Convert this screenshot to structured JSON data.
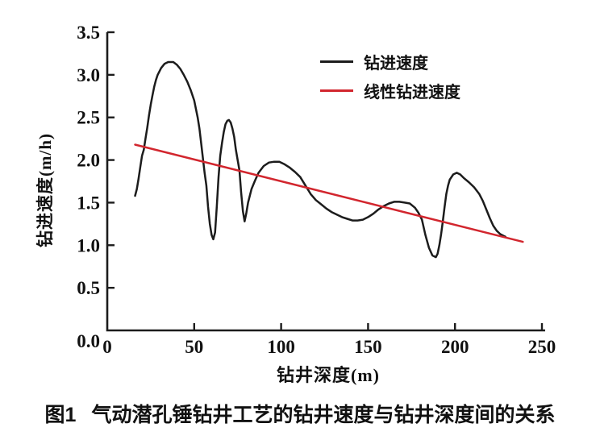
{
  "figure": {
    "caption_label": "图1",
    "caption_text": "气动潜孔锤钻井工艺的钻井速度与钻井深度间的关系"
  },
  "chart_data": {
    "type": "line",
    "title": "",
    "xlabel": "钻井深度(m)",
    "ylabel": "钻进速度(m/h)",
    "xlim": [
      0,
      250
    ],
    "ylim": [
      0,
      3.5
    ],
    "xticks": [
      0,
      50,
      100,
      150,
      200,
      250
    ],
    "ytick_labels": [
      "0.0",
      "0.5",
      "1.0",
      "1.5",
      "2.0",
      "2.5",
      "3.0",
      "3.5"
    ],
    "grid": false,
    "legend_position": "upper-right-inside",
    "axis_color": "#1c1c1c",
    "series": [
      {
        "name": "钻进速度",
        "color": "#1c1c1c",
        "x": [
          16,
          17,
          18,
          19,
          20,
          21,
          22,
          23,
          24,
          25,
          26,
          27,
          28,
          29,
          31,
          33,
          35,
          38,
          40,
          42,
          44,
          46,
          48,
          50,
          52,
          53,
          54,
          56,
          57,
          58,
          59,
          60,
          61,
          62,
          63,
          64,
          65,
          66,
          67,
          68,
          69,
          70,
          71,
          72,
          73,
          74,
          75,
          76,
          77,
          78,
          79,
          80,
          81,
          83,
          85,
          87,
          90,
          93,
          96,
          99,
          102,
          105,
          108,
          111,
          114,
          117,
          120,
          123,
          126,
          129,
          132,
          135,
          138,
          141,
          144,
          147,
          150,
          153,
          156,
          159,
          162,
          165,
          168,
          171,
          174,
          177,
          179,
          181,
          183,
          185,
          187,
          189,
          190,
          191,
          192,
          193,
          194,
          195,
          196,
          197,
          199,
          201,
          203,
          205,
          208,
          211,
          214,
          216,
          218,
          220,
          222,
          224,
          226,
          228,
          229
        ],
        "y": [
          1.58,
          1.66,
          1.78,
          1.92,
          2.05,
          2.12,
          2.25,
          2.38,
          2.52,
          2.65,
          2.76,
          2.86,
          2.94,
          3.0,
          3.08,
          3.13,
          3.15,
          3.15,
          3.12,
          3.07,
          3.0,
          2.92,
          2.82,
          2.7,
          2.5,
          2.37,
          2.2,
          1.85,
          1.7,
          1.45,
          1.25,
          1.12,
          1.07,
          1.15,
          1.45,
          1.8,
          2.05,
          2.2,
          2.33,
          2.42,
          2.46,
          2.47,
          2.44,
          2.37,
          2.27,
          2.12,
          2.0,
          1.88,
          1.62,
          1.4,
          1.28,
          1.38,
          1.5,
          1.66,
          1.76,
          1.85,
          1.93,
          1.97,
          1.98,
          1.98,
          1.95,
          1.91,
          1.86,
          1.8,
          1.7,
          1.6,
          1.53,
          1.48,
          1.43,
          1.39,
          1.36,
          1.33,
          1.31,
          1.29,
          1.29,
          1.3,
          1.33,
          1.37,
          1.42,
          1.46,
          1.49,
          1.51,
          1.51,
          1.5,
          1.49,
          1.44,
          1.38,
          1.3,
          1.12,
          0.97,
          0.88,
          0.86,
          0.9,
          1.0,
          1.13,
          1.28,
          1.45,
          1.6,
          1.7,
          1.77,
          1.83,
          1.85,
          1.83,
          1.79,
          1.74,
          1.68,
          1.6,
          1.52,
          1.42,
          1.32,
          1.23,
          1.17,
          1.13,
          1.11,
          1.1
        ]
      },
      {
        "name": "线性钻进速度",
        "color": "#d2262e",
        "x": [
          16,
          239
        ],
        "y": [
          2.18,
          1.04
        ]
      }
    ]
  }
}
